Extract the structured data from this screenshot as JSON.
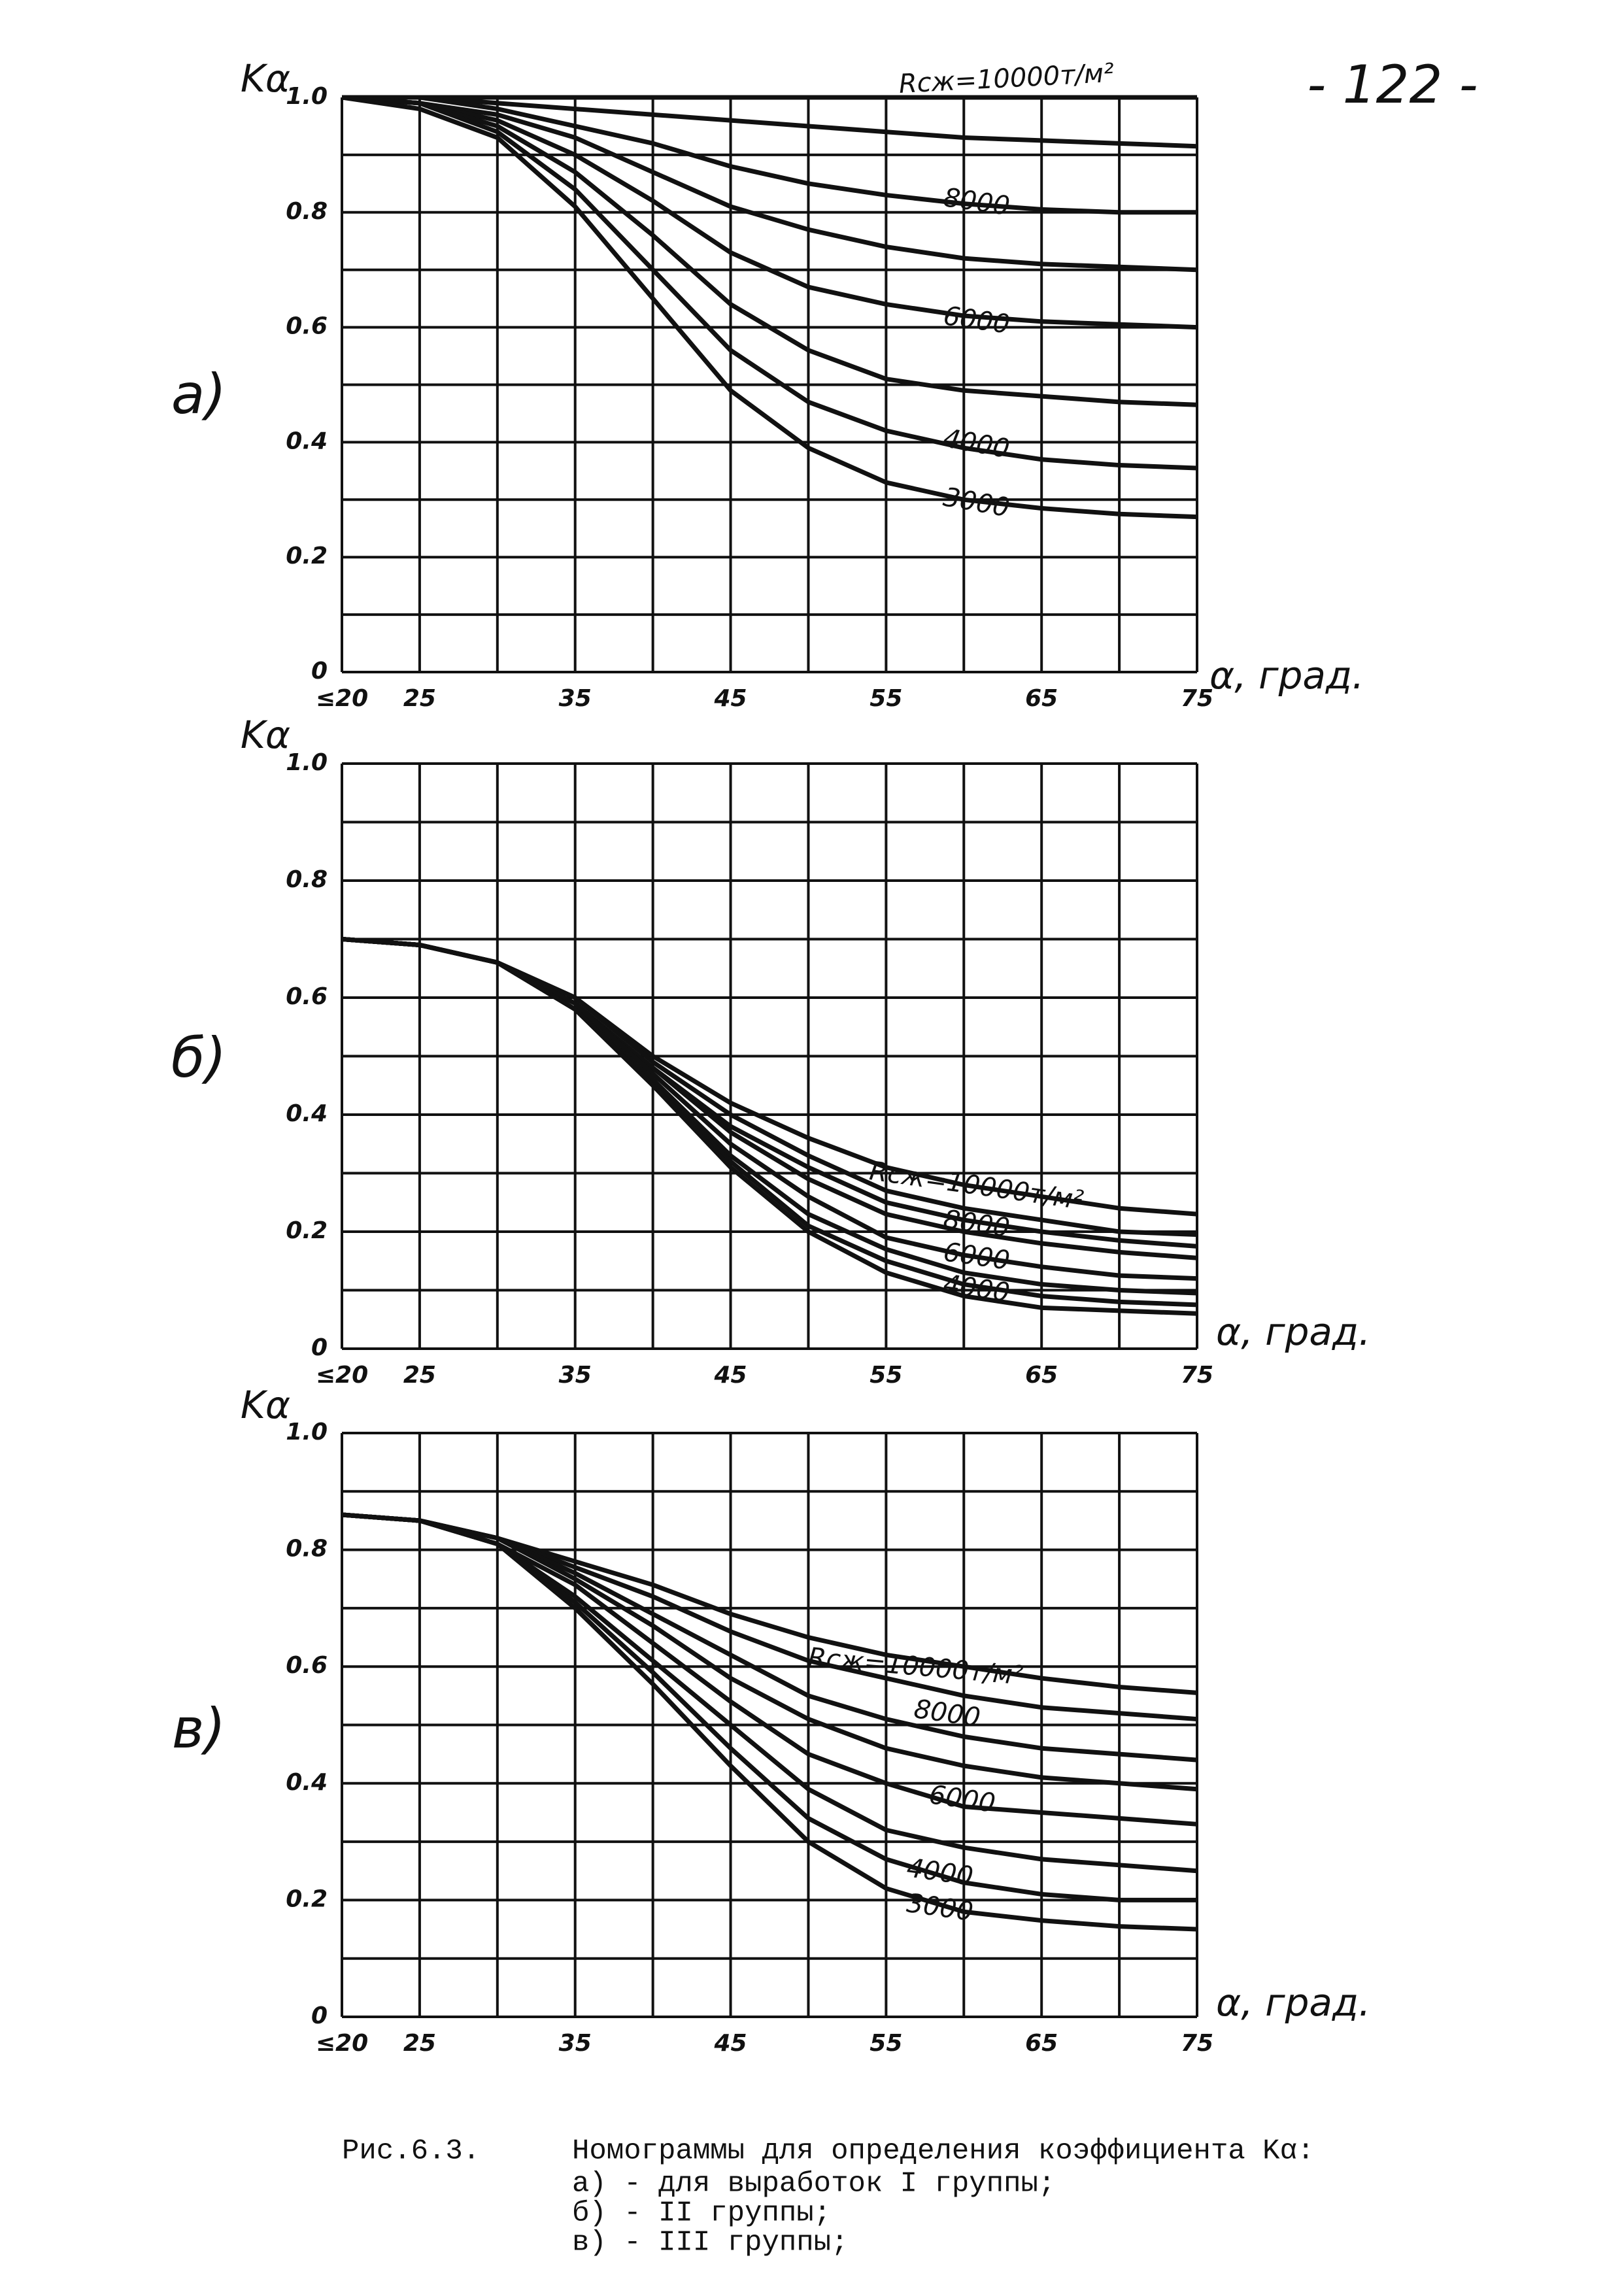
{
  "page_number": "- 122 -",
  "caption": {
    "figure": "Рис.6.3.",
    "title": "Номограммы для определения коэффициента Kα:",
    "items": [
      "а) - для выработок I группы;",
      "б) - II группы;",
      "в) - III группы;"
    ]
  },
  "chart_data": [
    {
      "type": "line",
      "panel_label": "а)",
      "ylabel": "Kα",
      "xlabel": "α, град.",
      "color": "#111111",
      "grid": true,
      "x": [
        20,
        25,
        30,
        35,
        40,
        45,
        50,
        55,
        60,
        65,
        70,
        75
      ],
      "xlim": [
        20,
        75
      ],
      "ylim": [
        0,
        1
      ],
      "xticks": [
        {
          "value": 20,
          "label": "≤20"
        },
        25,
        35,
        45,
        55,
        65,
        75
      ],
      "yticks": [
        0,
        0.2,
        0.4,
        0.6,
        0.8,
        {
          "value": 1,
          "label": "1.0"
        }
      ],
      "xgrid": [
        20,
        25,
        30,
        35,
        40,
        45,
        50,
        55,
        60,
        65,
        70,
        75
      ],
      "ygrid": [
        0,
        0.1,
        0.2,
        0.3,
        0.4,
        0.5,
        0.6,
        0.7,
        0.8,
        0.9,
        1
      ],
      "series": [
        {
          "name": "Rсж=10000т/м²",
          "values": [
            1,
            1,
            1,
            1,
            1,
            1,
            1,
            1,
            1,
            1,
            1,
            1
          ]
        },
        {
          "values": [
            1,
            1,
            0.99,
            0.98,
            0.97,
            0.96,
            0.95,
            0.94,
            0.93,
            0.925,
            0.92,
            0.915
          ]
        },
        {
          "name": "8000",
          "values": [
            1,
            1,
            0.98,
            0.95,
            0.92,
            0.88,
            0.85,
            0.83,
            0.815,
            0.805,
            0.8,
            0.8
          ]
        },
        {
          "values": [
            1,
            0.99,
            0.97,
            0.93,
            0.87,
            0.81,
            0.77,
            0.74,
            0.72,
            0.71,
            0.705,
            0.7
          ]
        },
        {
          "name": "6000",
          "values": [
            1,
            0.99,
            0.96,
            0.9,
            0.82,
            0.73,
            0.67,
            0.64,
            0.62,
            0.61,
            0.605,
            0.6
          ]
        },
        {
          "values": [
            1,
            0.99,
            0.95,
            0.87,
            0.76,
            0.64,
            0.56,
            0.51,
            0.49,
            0.48,
            0.47,
            0.465
          ]
        },
        {
          "name": "4000",
          "values": [
            1,
            0.99,
            0.94,
            0.84,
            0.7,
            0.56,
            0.47,
            0.42,
            0.39,
            0.37,
            0.36,
            0.355
          ]
        },
        {
          "name": "3000",
          "values": [
            1,
            0.98,
            0.93,
            0.81,
            0.65,
            0.49,
            0.39,
            0.33,
            0.3,
            0.285,
            0.275,
            0.27
          ]
        }
      ]
    },
    {
      "type": "line",
      "panel_label": "б)",
      "ylabel": "Kα",
      "xlabel": "α, град.",
      "color": "#111111",
      "grid": true,
      "x": [
        20,
        25,
        30,
        35,
        40,
        45,
        50,
        55,
        60,
        65,
        70,
        75
      ],
      "xlim": [
        20,
        75
      ],
      "ylim": [
        0,
        1
      ],
      "xticks": [
        {
          "value": 20,
          "label": "≤20"
        },
        25,
        35,
        45,
        55,
        65,
        75
      ],
      "yticks": [
        0,
        0.2,
        0.4,
        0.6,
        0.8,
        {
          "value": 1,
          "label": "1.0"
        }
      ],
      "xgrid": [
        20,
        25,
        30,
        35,
        40,
        45,
        50,
        55,
        60,
        65,
        70,
        75
      ],
      "ygrid": [
        0,
        0.1,
        0.2,
        0.3,
        0.4,
        0.5,
        0.6,
        0.7,
        0.8,
        0.9,
        1
      ],
      "series": [
        {
          "name": "Rсж=10000т/м²",
          "values": [
            0.7,
            0.69,
            0.66,
            0.6,
            0.5,
            0.42,
            0.36,
            0.31,
            0.28,
            0.26,
            0.24,
            0.23
          ]
        },
        {
          "values": [
            0.7,
            0.69,
            0.66,
            0.6,
            0.49,
            0.4,
            0.33,
            0.27,
            0.24,
            0.22,
            0.2,
            0.195
          ]
        },
        {
          "name": "8000",
          "values": [
            0.7,
            0.69,
            0.66,
            0.59,
            0.48,
            0.38,
            0.31,
            0.25,
            0.22,
            0.2,
            0.185,
            0.175
          ]
        },
        {
          "values": [
            0.7,
            0.69,
            0.66,
            0.59,
            0.48,
            0.37,
            0.29,
            0.23,
            0.2,
            0.18,
            0.165,
            0.155
          ]
        },
        {
          "name": "6000",
          "values": [
            0.7,
            0.69,
            0.66,
            0.59,
            0.47,
            0.35,
            0.26,
            0.19,
            0.16,
            0.14,
            0.125,
            0.12
          ]
        },
        {
          "values": [
            0.7,
            0.69,
            0.66,
            0.58,
            0.46,
            0.33,
            0.23,
            0.17,
            0.13,
            0.11,
            0.1,
            0.095
          ]
        },
        {
          "name": "4000",
          "values": [
            0.7,
            0.69,
            0.66,
            0.58,
            0.45,
            0.32,
            0.21,
            0.15,
            0.11,
            0.09,
            0.08,
            0.075
          ]
        },
        {
          "values": [
            0.7,
            0.69,
            0.66,
            0.58,
            0.45,
            0.31,
            0.2,
            0.13,
            0.09,
            0.07,
            0.065,
            0.06
          ]
        }
      ]
    },
    {
      "type": "line",
      "panel_label": "в)",
      "ylabel": "Kα",
      "xlabel": "α, град.",
      "color": "#111111",
      "grid": true,
      "x": [
        20,
        25,
        30,
        35,
        40,
        45,
        50,
        55,
        60,
        65,
        70,
        75
      ],
      "xlim": [
        20,
        75
      ],
      "ylim": [
        0,
        1
      ],
      "xticks": [
        {
          "value": 20,
          "label": "≤20"
        },
        25,
        35,
        45,
        55,
        65,
        75
      ],
      "yticks": [
        0,
        0.2,
        0.4,
        0.6,
        0.8,
        {
          "value": 1,
          "label": "1.0"
        }
      ],
      "xgrid": [
        20,
        25,
        30,
        35,
        40,
        45,
        50,
        55,
        60,
        65,
        70,
        75
      ],
      "ygrid": [
        0,
        0.1,
        0.2,
        0.3,
        0.4,
        0.5,
        0.6,
        0.7,
        0.8,
        0.9,
        1
      ],
      "series": [
        {
          "name": "Rсж=10000т/м²",
          "values": [
            0.86,
            0.85,
            0.82,
            0.78,
            0.74,
            0.69,
            0.65,
            0.62,
            0.6,
            0.58,
            0.565,
            0.555
          ]
        },
        {
          "name": "8000",
          "values": [
            0.86,
            0.85,
            0.82,
            0.77,
            0.72,
            0.66,
            0.61,
            0.58,
            0.55,
            0.53,
            0.52,
            0.51
          ]
        },
        {
          "values": [
            0.86,
            0.85,
            0.82,
            0.76,
            0.69,
            0.62,
            0.55,
            0.51,
            0.48,
            0.46,
            0.45,
            0.44
          ]
        },
        {
          "name": "6000",
          "values": [
            0.86,
            0.85,
            0.82,
            0.75,
            0.67,
            0.58,
            0.51,
            0.46,
            0.43,
            0.41,
            0.4,
            0.39
          ]
        },
        {
          "values": [
            0.86,
            0.85,
            0.81,
            0.74,
            0.64,
            0.54,
            0.45,
            0.4,
            0.36,
            0.35,
            0.34,
            0.33
          ]
        },
        {
          "name": "4000",
          "values": [
            0.86,
            0.85,
            0.81,
            0.72,
            0.61,
            0.5,
            0.39,
            0.32,
            0.29,
            0.27,
            0.26,
            0.25
          ]
        },
        {
          "name": "3000",
          "values": [
            0.86,
            0.85,
            0.81,
            0.71,
            0.59,
            0.46,
            0.34,
            0.27,
            0.23,
            0.21,
            0.2,
            0.2
          ]
        },
        {
          "values": [
            0.86,
            0.85,
            0.81,
            0.7,
            0.57,
            0.43,
            0.3,
            0.22,
            0.18,
            0.165,
            0.155,
            0.15
          ]
        }
      ]
    }
  ]
}
